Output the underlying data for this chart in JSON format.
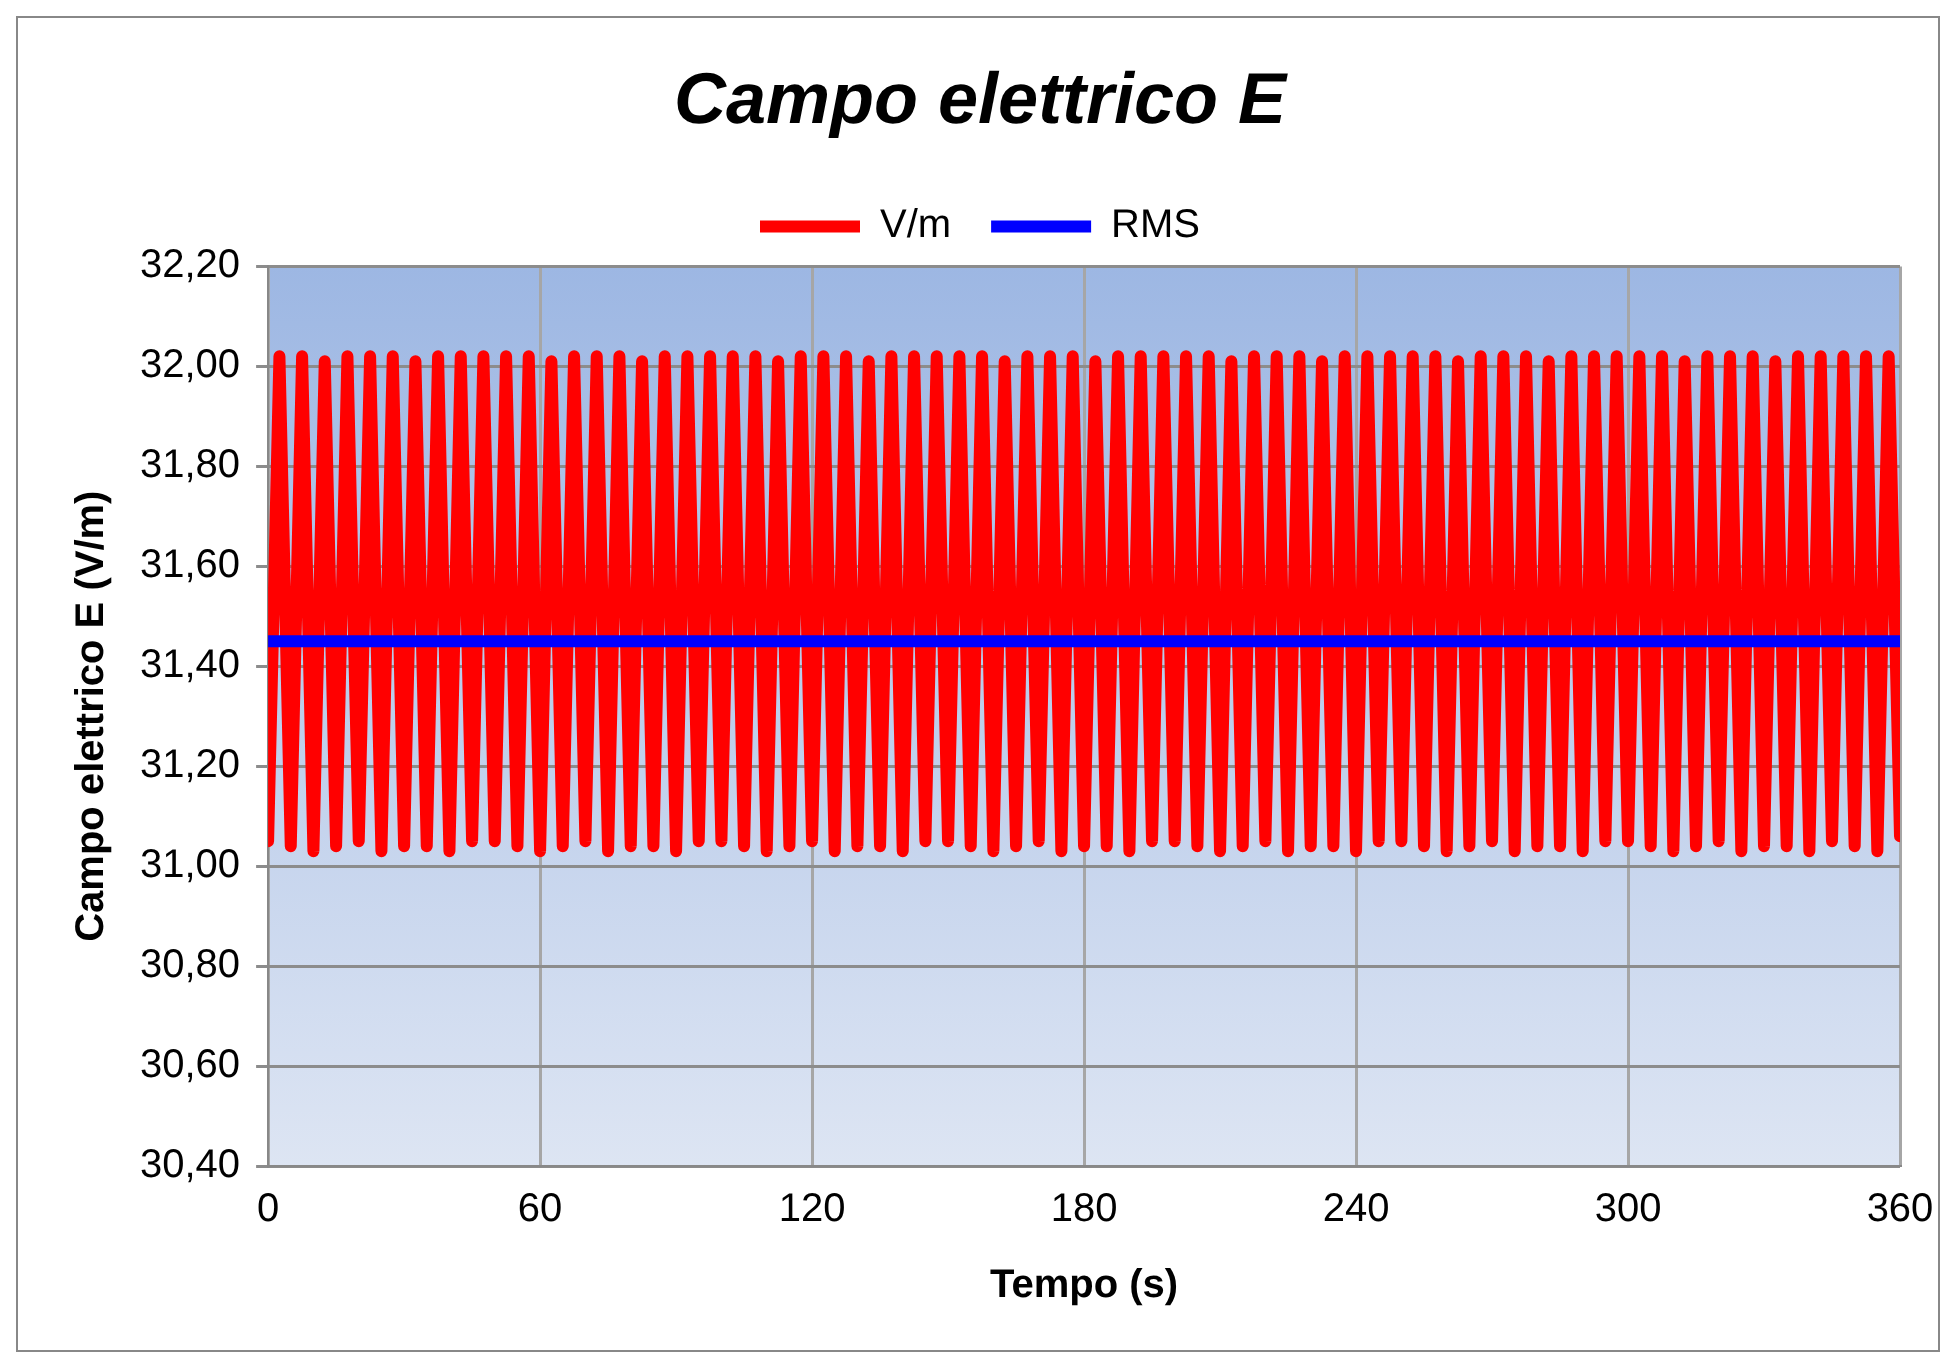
{
  "chart_data": {
    "type": "line",
    "title": "Campo elettrico E",
    "xlabel": "Tempo (s)",
    "ylabel": "Campo elettrico E (V/m)",
    "series": [
      {
        "name": "V/m",
        "color": "#ff0000",
        "x": [
          0,
          2.5,
          5,
          7.5,
          10,
          12.5,
          15,
          17.5,
          20,
          22.5,
          25,
          27.5,
          30,
          32.5,
          35,
          37.5,
          40,
          42.5,
          45,
          47.5,
          50,
          52.5,
          55,
          57.5,
          60,
          62.5,
          65,
          67.5,
          70,
          72.5,
          75,
          77.5,
          80,
          82.5,
          85,
          87.5,
          90,
          92.5,
          95,
          97.5,
          100,
          102.5,
          105,
          107.5,
          110,
          112.5,
          115,
          117.5,
          120,
          122.5,
          125,
          127.5,
          130,
          132.5,
          135,
          137.5,
          140,
          142.5,
          145,
          147.5,
          150,
          152.5,
          155,
          157.5,
          160,
          162.5,
          165,
          167.5,
          170,
          172.5,
          175,
          177.5,
          180,
          182.5,
          185,
          187.5,
          190,
          192.5,
          195,
          197.5,
          200,
          202.5,
          205,
          207.5,
          210,
          212.5,
          215,
          217.5,
          220,
          222.5,
          225,
          227.5,
          230,
          232.5,
          235,
          237.5,
          240,
          242.5,
          245,
          247.5,
          250,
          252.5,
          255,
          257.5,
          260,
          262.5,
          265,
          267.5,
          270,
          272.5,
          275,
          277.5,
          280,
          282.5,
          285,
          287.5,
          290,
          292.5,
          295,
          297.5,
          300,
          302.5,
          305,
          307.5,
          310,
          312.5,
          315,
          317.5,
          320,
          322.5,
          325,
          327.5,
          330,
          332.5,
          335,
          337.5,
          340,
          342.5,
          345,
          347.5,
          350,
          352.5,
          355,
          357.5,
          360
        ],
        "values": [
          31.05,
          32.02,
          31.04,
          32.02,
          31.03,
          32.01,
          31.04,
          32.02,
          31.05,
          32.02,
          31.03,
          32.02,
          31.04,
          32.01,
          31.04,
          32.02,
          31.03,
          32.02,
          31.05,
          32.02,
          31.05,
          32.02,
          31.04,
          32.02,
          31.03,
          32.01,
          31.04,
          32.02,
          31.05,
          32.02,
          31.03,
          32.02,
          31.04,
          32.01,
          31.04,
          32.02,
          31.03,
          32.02,
          31.05,
          32.02,
          31.05,
          32.02,
          31.04,
          32.02,
          31.03,
          32.01,
          31.04,
          32.02,
          31.05,
          32.02,
          31.03,
          32.02,
          31.04,
          32.01,
          31.04,
          32.02,
          31.03,
          32.02,
          31.05,
          32.02,
          31.05,
          32.02,
          31.04,
          32.02,
          31.03,
          32.01,
          31.04,
          32.02,
          31.05,
          32.02,
          31.03,
          32.02,
          31.04,
          32.01,
          31.04,
          32.02,
          31.03,
          32.02,
          31.05,
          32.02,
          31.05,
          32.02,
          31.04,
          32.02,
          31.03,
          32.01,
          31.04,
          32.02,
          31.05,
          32.02,
          31.03,
          32.02,
          31.04,
          32.01,
          31.04,
          32.02,
          31.03,
          32.02,
          31.05,
          32.02,
          31.05,
          32.02,
          31.04,
          32.02,
          31.03,
          32.01,
          31.04,
          32.02,
          31.05,
          32.02,
          31.03,
          32.02,
          31.04,
          32.01,
          31.04,
          32.02,
          31.03,
          32.02,
          31.05,
          32.02,
          31.05,
          32.02,
          31.04,
          32.02,
          31.03,
          32.01,
          31.04,
          32.02,
          31.05,
          32.02,
          31.03,
          32.02,
          31.04,
          32.01,
          31.04,
          32.02,
          31.03,
          32.02,
          31.05,
          32.02,
          31.04,
          32.02,
          31.03,
          32.02,
          31.06
        ]
      },
      {
        "name": "RMS",
        "color": "#0000ff",
        "x": [
          0,
          360
        ],
        "values": [
          31.45,
          31.45
        ]
      }
    ],
    "xlim": [
      0,
      360
    ],
    "xticks": [
      0,
      60,
      120,
      180,
      240,
      300,
      360
    ],
    "ylim": [
      30.4,
      32.2
    ],
    "yticks": [
      {
        "value": 30.4,
        "label": "30,40"
      },
      {
        "value": 30.6,
        "label": "30,60"
      },
      {
        "value": 30.8,
        "label": "30,80"
      },
      {
        "value": 31.0,
        "label": "31,00"
      },
      {
        "value": 31.2,
        "label": "31,20"
      },
      {
        "value": 31.4,
        "label": "31,40"
      },
      {
        "value": 31.6,
        "label": "31,60"
      },
      {
        "value": 31.8,
        "label": "31,80"
      },
      {
        "value": 32.0,
        "label": "32,00"
      },
      {
        "value": 32.2,
        "label": "32,20"
      }
    ],
    "grid": true,
    "legend": "top",
    "marker": "none",
    "line_style": "solid"
  }
}
